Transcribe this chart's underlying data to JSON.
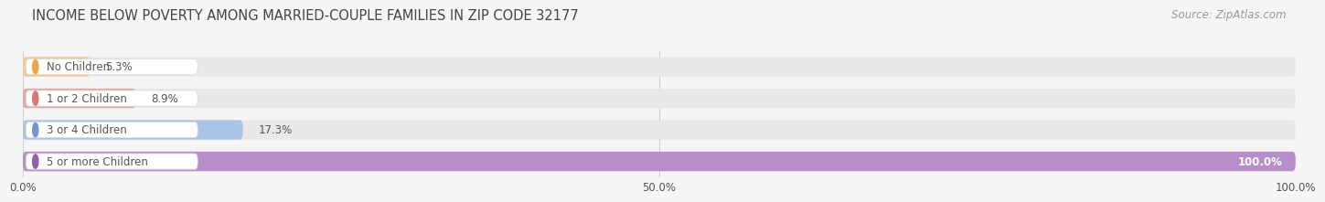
{
  "title": "INCOME BELOW POVERTY AMONG MARRIED-COUPLE FAMILIES IN ZIP CODE 32177",
  "source": "Source: ZipAtlas.com",
  "categories": [
    "No Children",
    "1 or 2 Children",
    "3 or 4 Children",
    "5 or more Children"
  ],
  "values": [
    5.3,
    8.9,
    17.3,
    100.0
  ],
  "bar_colors": [
    "#f5c98a",
    "#f0a0a0",
    "#aac4e8",
    "#b88ec8"
  ],
  "dot_colors": [
    "#e8a84a",
    "#d87878",
    "#7098c8",
    "#9060b0"
  ],
  "text_color": "#555555",
  "title_color": "#444444",
  "source_color": "#999999",
  "bg_color": "#f5f5f5",
  "bar_bg_color": "#e8e8e8",
  "grid_color": "#cccccc",
  "xlim_data": [
    0,
    100
  ],
  "xticks": [
    0.0,
    50.0,
    100.0
  ],
  "xtick_labels": [
    "0.0%",
    "50.0%",
    "100.0%"
  ],
  "title_fontsize": 10.5,
  "label_fontsize": 8.5,
  "value_fontsize": 8.5,
  "source_fontsize": 8.5
}
